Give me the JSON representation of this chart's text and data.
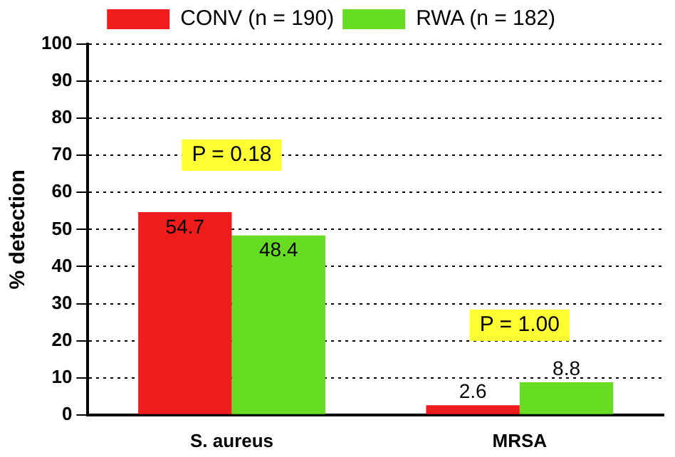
{
  "chart_data": {
    "type": "bar",
    "ylabel": "% detection",
    "categories": [
      "S. aureus",
      "MRSA"
    ],
    "series": [
      {
        "name": "CONV (n = 190)",
        "color": "#ee1c1c",
        "values": [
          54.7,
          2.6
        ]
      },
      {
        "name": "RWA (n = 182)",
        "color": "#66dd22",
        "values": [
          48.4,
          8.8
        ]
      }
    ],
    "ylim": [
      0,
      100
    ],
    "yticks": [
      0,
      10,
      20,
      30,
      40,
      50,
      60,
      70,
      80,
      90,
      100
    ],
    "grid": "y",
    "legend": "top",
    "data_labels": true,
    "annotations": [
      "P = 0.18",
      "P = 1.00"
    ]
  }
}
